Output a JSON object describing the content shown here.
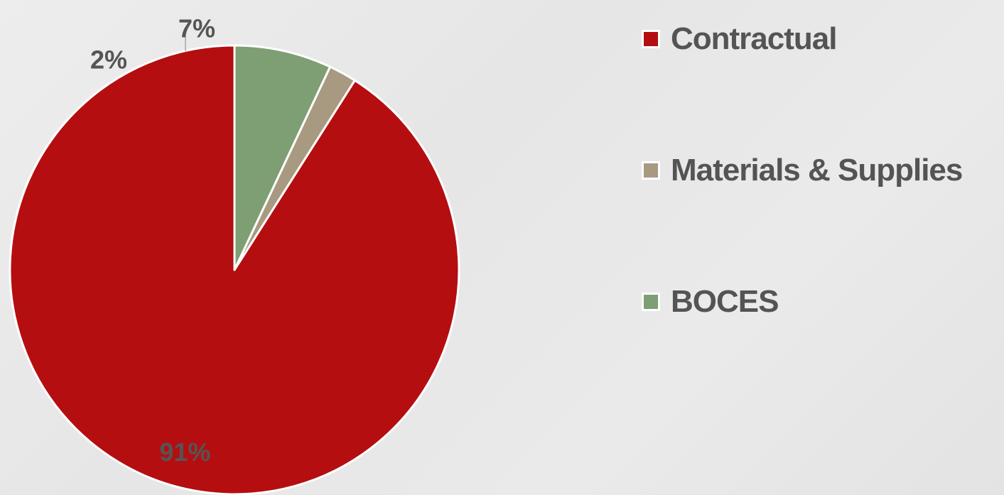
{
  "chart_data": {
    "type": "pie",
    "title": "",
    "slices": [
      {
        "label": "Contractual",
        "value": 91,
        "display": "91%",
        "color": "#b50e11"
      },
      {
        "label": "Materials & Supplies",
        "value": 2,
        "display": "2%",
        "color": "#a89a80"
      },
      {
        "label": "BOCES",
        "value": 7,
        "display": "7%",
        "color": "#7e9e73"
      }
    ],
    "start_angle_deg": 0,
    "direction": "counterclockwise",
    "legend_position": "right"
  }
}
